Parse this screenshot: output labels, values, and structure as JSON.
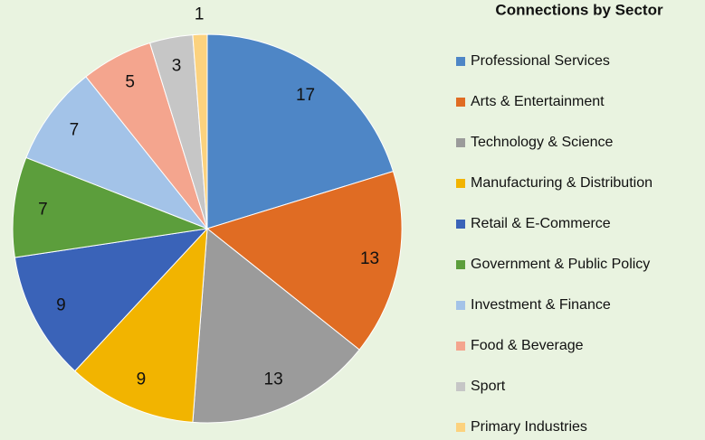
{
  "chart_data": {
    "type": "pie",
    "title": "Connections by Sector",
    "categories": [
      "Professional Services",
      "Arts & Entertainment",
      "Technology & Science",
      "Manufacturing & Distribution",
      "Retail & E-Commerce",
      "Government & Public Policy",
      "Investment & Finance",
      "Food & Beverage",
      "Sport",
      "Primary Industries"
    ],
    "values": [
      17,
      13,
      13,
      9,
      9,
      7,
      7,
      5,
      3,
      1
    ],
    "colors": [
      "#4e86c6",
      "#e06c23",
      "#9b9b9b",
      "#f2b400",
      "#3a63b8",
      "#5c9e3c",
      "#a3c3e8",
      "#f4a58e",
      "#c6c6c6",
      "#fcd27e"
    ],
    "legend": "right"
  }
}
